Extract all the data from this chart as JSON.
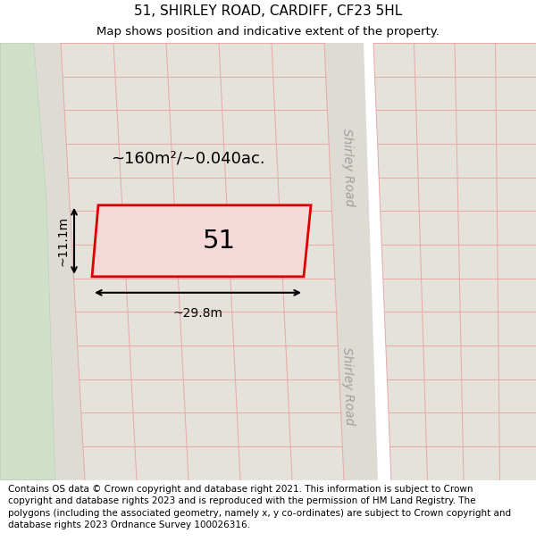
{
  "title_line1": "51, SHIRLEY ROAD, CARDIFF, CF23 5HL",
  "title_line2": "Map shows position and indicative extent of the property.",
  "footer_text": "Contains OS data © Crown copyright and database right 2021. This information is subject to Crown copyright and database rights 2023 and is reproduced with the permission of HM Land Registry. The polygons (including the associated geometry, namely x, y co-ordinates) are subject to Crown copyright and database rights 2023 Ordnance Survey 100026316.",
  "map_bg": "#eeebe6",
  "grid_line_color": "#e8a8a8",
  "highlight_color": "#dd0000",
  "highlight_fill": "#f5d8d8",
  "plot_fill": "#e5e1db",
  "road_fill": "#e0dbd4",
  "green_color": "#cfdfc8",
  "white_road": "#dedad4",
  "road_label": "Shirley Road",
  "green_edge": "#b8ccb4",
  "area_text": "~160m²/~0.040ac.",
  "label_51": "51",
  "dim_width": "~29.8m",
  "dim_height": "~11.1m",
  "title_fontsize": 11,
  "subtitle_fontsize": 9.5,
  "footer_fontsize": 7.5
}
